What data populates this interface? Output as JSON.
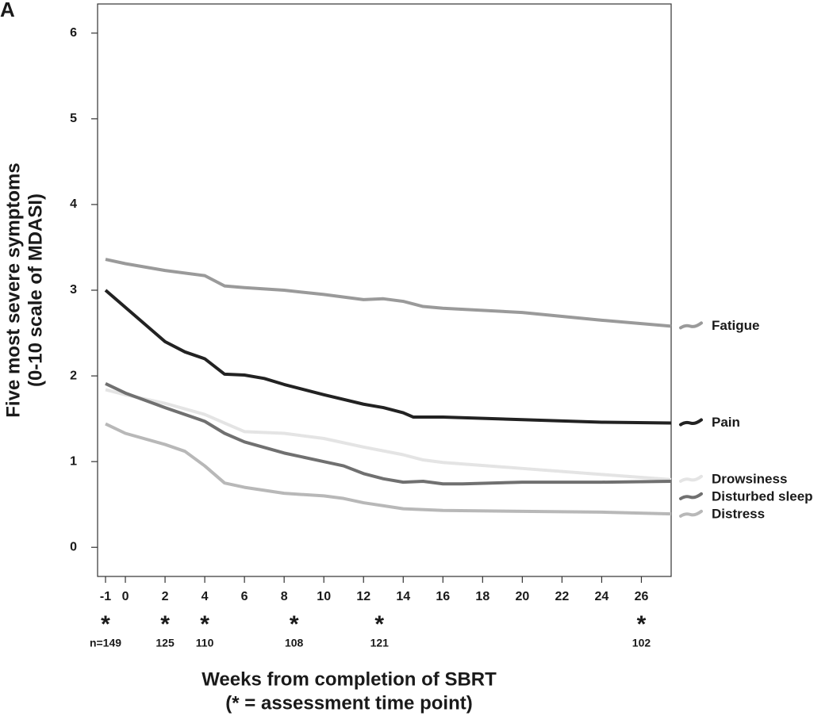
{
  "chart_data": {
    "type": "line",
    "panel_label": "A",
    "xlabel": [
      "Weeks from completion of SBRT",
      "(* = assessment time point)"
    ],
    "ylabel": [
      "Five most severe symptoms",
      "(0-10 scale of MDASI)"
    ],
    "xlim": [
      -1.4,
      27.5
    ],
    "ylim": [
      -0.34,
      6.34
    ],
    "xticks": [
      -1,
      0,
      2,
      4,
      6,
      8,
      10,
      12,
      14,
      16,
      18,
      20,
      22,
      24,
      26
    ],
    "yticks": [
      0,
      1,
      2,
      3,
      4,
      5,
      6
    ],
    "legend": "right-end",
    "series": [
      {
        "name": "Fatigue",
        "color": "#9a9a9a",
        "x": [
          -1,
          0,
          2,
          4,
          5,
          6,
          8,
          10,
          12,
          13,
          14,
          15,
          16,
          20,
          24,
          27.5
        ],
        "values": [
          3.36,
          3.31,
          3.23,
          3.17,
          3.05,
          3.03,
          3.0,
          2.95,
          2.89,
          2.9,
          2.87,
          2.81,
          2.79,
          2.74,
          2.65,
          2.58
        ]
      },
      {
        "name": "Pain",
        "color": "#222222",
        "x": [
          -1,
          0,
          2,
          3,
          4,
          5,
          6,
          7,
          8,
          10,
          12,
          13,
          14,
          14.5,
          16,
          20,
          24,
          27.5
        ],
        "values": [
          3.0,
          2.8,
          2.4,
          2.28,
          2.2,
          2.02,
          2.01,
          1.97,
          1.9,
          1.78,
          1.67,
          1.63,
          1.57,
          1.52,
          1.52,
          1.49,
          1.46,
          1.45
        ]
      },
      {
        "name": "Drowsiness",
        "color": "#e4e4e4",
        "x": [
          -1,
          0,
          2,
          4,
          5,
          6,
          8,
          10,
          12,
          14,
          15,
          16,
          20,
          24,
          27.5
        ],
        "values": [
          1.84,
          1.78,
          1.68,
          1.55,
          1.45,
          1.35,
          1.33,
          1.27,
          1.17,
          1.08,
          1.02,
          0.99,
          0.92,
          0.85,
          0.79
        ]
      },
      {
        "name": "Disturbed sleep",
        "color": "#707070",
        "x": [
          -1,
          0,
          2,
          4,
          5,
          6,
          8,
          10,
          11,
          12,
          13,
          14,
          15,
          16,
          17,
          20,
          24,
          27.5
        ],
        "values": [
          1.91,
          1.8,
          1.63,
          1.47,
          1.33,
          1.23,
          1.1,
          1.0,
          0.95,
          0.86,
          0.8,
          0.76,
          0.77,
          0.74,
          0.74,
          0.76,
          0.76,
          0.77
        ]
      },
      {
        "name": "Distress",
        "color": "#b8b8b8",
        "x": [
          -1,
          0,
          2,
          3,
          4,
          5,
          6,
          8,
          10,
          11,
          12,
          14,
          16,
          20,
          24,
          27.5
        ],
        "values": [
          1.44,
          1.33,
          1.2,
          1.12,
          0.95,
          0.75,
          0.7,
          0.63,
          0.6,
          0.57,
          0.52,
          0.45,
          0.43,
          0.42,
          0.41,
          0.39
        ]
      }
    ],
    "assessments": {
      "marker": "*",
      "x": [
        -1,
        2,
        4,
        8.5,
        12.8,
        26
      ],
      "values": [
        149,
        125,
        110,
        108,
        121,
        102
      ],
      "value_labels": [
        "n=149",
        "125",
        "110",
        "108",
        "121",
        "102"
      ]
    }
  }
}
